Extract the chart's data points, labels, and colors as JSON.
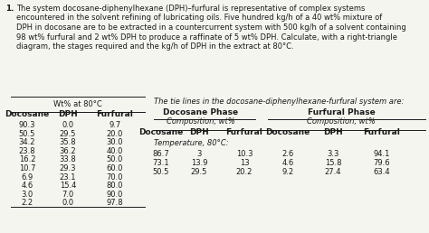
{
  "problem_number": "1.",
  "problem_lines": [
    "The system docosane-diphenylhexane (DPH)–furfural is representative of complex systems",
    "encountered in the solvent refining of lubricating oils. Five hundred kg/h of a 40 wt% mixture of",
    "DPH in docosane are to be extracted in a countercurrent system with 500 kg/h of a solvent containing",
    "98 wt% furfural and 2 wt% DPH to produce a raffinate of 5 wt% DPH. Calculate, with a right-triangle",
    "diagram, the stages required and the kg/h of DPH in the extract at 80°C."
  ],
  "table1_title": "Wt% at 80°C",
  "table1_headers": [
    "Docosane",
    "DPH",
    "Furfural"
  ],
  "table1_data": [
    [
      90.3,
      0.0,
      9.7
    ],
    [
      50.5,
      29.5,
      20.0
    ],
    [
      34.2,
      35.8,
      30.0
    ],
    [
      23.8,
      36.2,
      40.0
    ],
    [
      16.2,
      33.8,
      50.0
    ],
    [
      10.7,
      29.3,
      60.0
    ],
    [
      6.9,
      23.1,
      70.0
    ],
    [
      4.6,
      15.4,
      80.0
    ],
    [
      3.0,
      7.0,
      90.0
    ],
    [
      2.2,
      0.0,
      97.8
    ]
  ],
  "tie_line_intro": "The tie lines in the docosane-diphenylhexane-furfural system are:",
  "docosane_phase_label": "Docosane Phase",
  "furfural_phase_label": "Furfural Phase",
  "composition_label": "Composition, wt%",
  "tie_col_headers": [
    "Docosane",
    "DPH",
    "Furfural",
    "Docosane",
    "DPH",
    "Furfural"
  ],
  "temperature_label": "Temperature, 80°C:",
  "tie_data": [
    [
      86.7,
      3.0,
      10.3,
      2.6,
      3.3,
      94.1
    ],
    [
      73.1,
      13.9,
      13.0,
      4.6,
      15.8,
      79.6
    ],
    [
      50.5,
      29.5,
      20.2,
      9.2,
      27.4,
      63.4
    ]
  ],
  "bg_color": "#f5f5f0",
  "text_color": "#1a1a1a",
  "fs_body": 6.0,
  "fs_header": 6.3,
  "fs_bold_header": 6.5
}
